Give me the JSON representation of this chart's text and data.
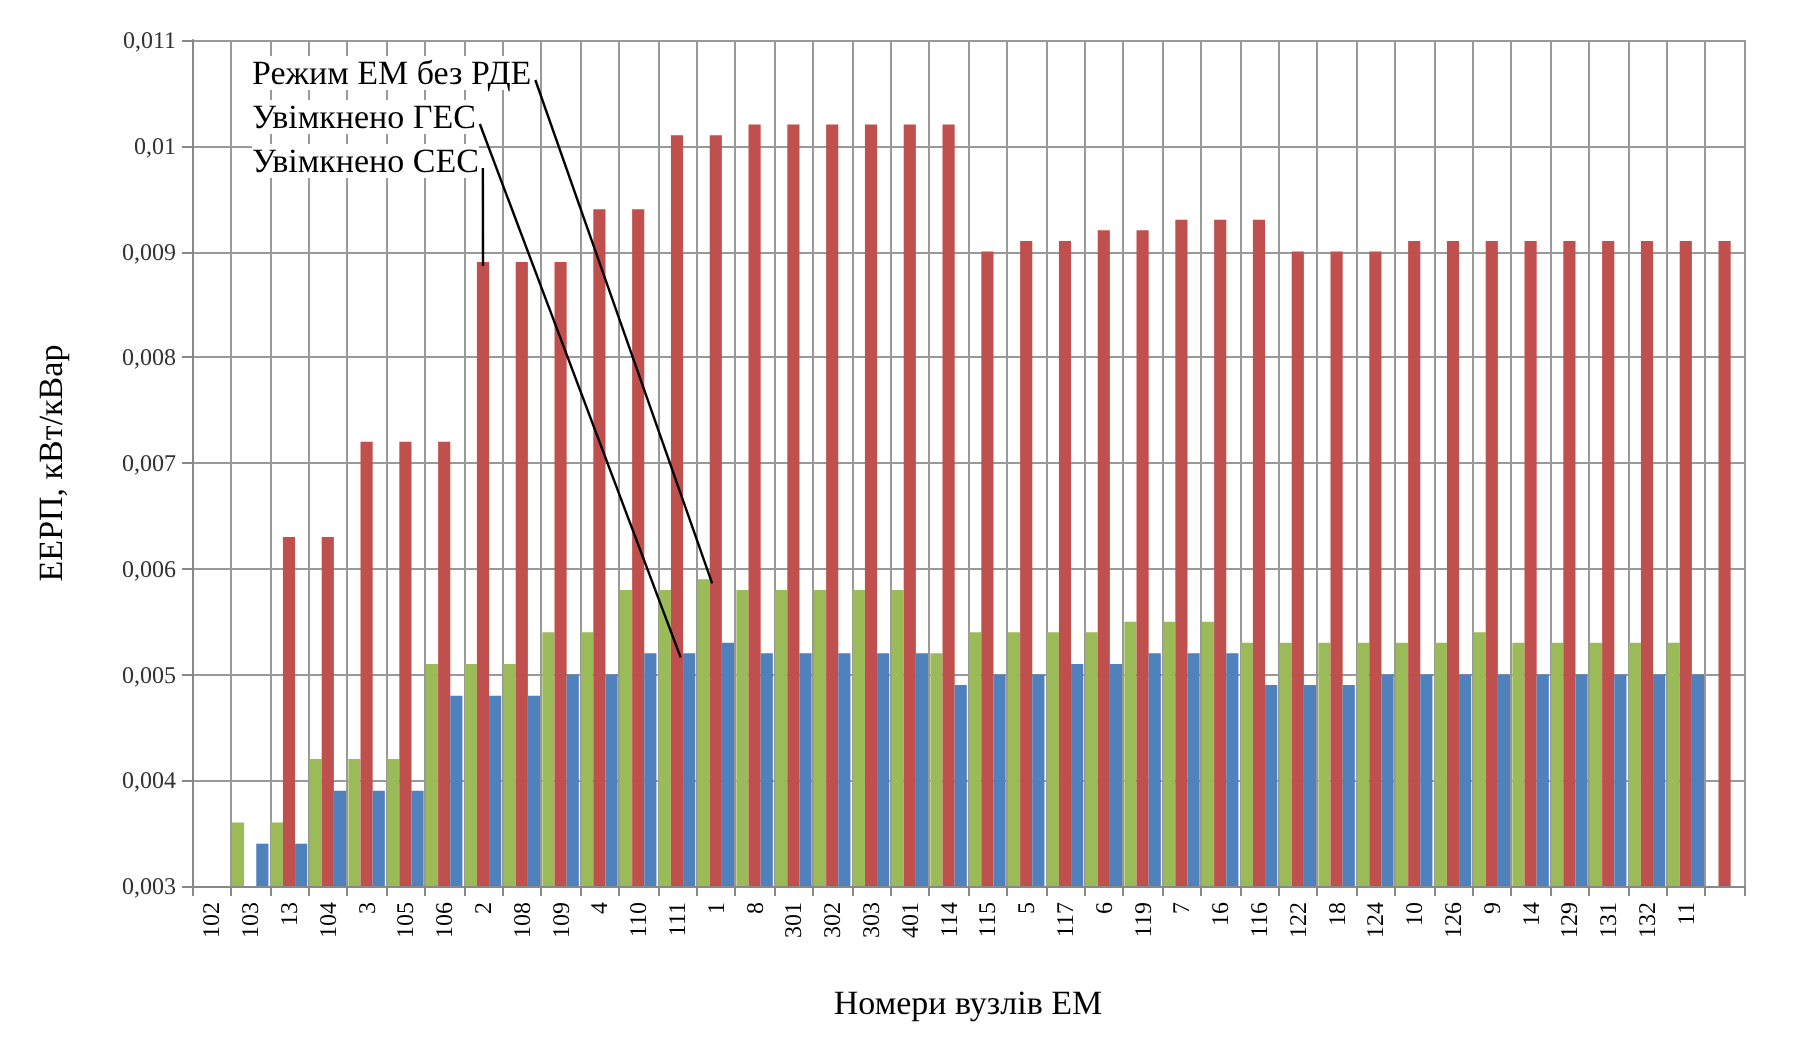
{
  "chart_data": {
    "type": "bar",
    "xlabel": "Номери вузлів ЕМ",
    "ylabel": "ЕЕРП, кВт/кВар",
    "categories": [
      "102",
      "103",
      "13",
      "104",
      "3",
      "105",
      "106",
      "2",
      "108",
      "109",
      "4",
      "110",
      "111",
      "1",
      "8",
      "301",
      "302",
      "303",
      "401",
      "114",
      "115",
      "5",
      "117",
      "6",
      "119",
      "7",
      "16",
      "116",
      "122",
      "18",
      "124",
      "10",
      "126",
      "9",
      "14",
      "129",
      "131",
      "132",
      "11",
      null
    ],
    "series": [
      {
        "color": "#9bbb59",
        "values": [
          null,
          0.0036,
          0.0036,
          0.0042,
          0.0042,
          0.0042,
          0.0051,
          0.0051,
          0.0051,
          0.0054,
          0.0054,
          0.0058,
          0.0058,
          0.0059,
          0.0058,
          0.0058,
          0.0058,
          0.0058,
          0.0058,
          0.0052,
          0.0054,
          0.0054,
          0.0054,
          0.0054,
          0.0055,
          0.0055,
          0.0055,
          0.0053,
          0.0053,
          0.0053,
          0.0053,
          0.0053,
          0.0053,
          0.0054,
          0.0053,
          0.0053,
          0.0053,
          0.0053,
          0.0053,
          null
        ]
      },
      {
        "color": "#c0504d",
        "values": [
          null,
          null,
          0.0063,
          0.0063,
          0.0072,
          0.0072,
          0.0072,
          0.0089,
          0.0089,
          0.0089,
          0.0094,
          0.0094,
          0.0101,
          0.0101,
          0.0102,
          0.0102,
          0.0102,
          0.0102,
          0.0102,
          0.0102,
          0.009,
          0.0091,
          0.0091,
          0.0092,
          0.0092,
          0.0093,
          0.0093,
          0.0093,
          0.009,
          0.009,
          0.009,
          0.0091,
          0.0091,
          0.0091,
          0.0091,
          0.0091,
          0.0091,
          0.0091,
          0.0091,
          0.0091
        ]
      },
      {
        "color": "#4f81bd",
        "values": [
          null,
          0.0034,
          0.0034,
          0.0039,
          0.0039,
          0.0039,
          0.0048,
          0.0048,
          0.0048,
          0.005,
          0.005,
          0.0052,
          0.0052,
          0.0053,
          0.0052,
          0.0052,
          0.0052,
          0.0052,
          0.0052,
          0.0049,
          0.005,
          0.005,
          0.0051,
          0.0051,
          0.0052,
          0.0052,
          0.0052,
          0.0049,
          0.0049,
          0.0049,
          0.005,
          0.005,
          0.005,
          0.005,
          0.005,
          0.005,
          0.005,
          0.005,
          0.005,
          null
        ]
      }
    ],
    "ylim": [
      0.003,
      0.011
    ],
    "yticks": [
      {
        "value": 0.003,
        "label": "0,003"
      },
      {
        "value": 0.004,
        "label": "0,004"
      },
      {
        "value": 0.005,
        "label": "0,005"
      },
      {
        "value": 0.006,
        "label": "0,006"
      },
      {
        "value": 0.007,
        "label": "0,007"
      },
      {
        "value": 0.008,
        "label": "0,008"
      },
      {
        "value": 0.009,
        "label": "0,009"
      },
      {
        "value": 0.01,
        "label": "0,01"
      },
      {
        "value": 0.011,
        "label": "0,011"
      }
    ],
    "grid": true,
    "annotations": [
      {
        "text": "Режим ЕМ без РДЕ",
        "x": "1",
        "y": 0.0059
      },
      {
        "text": "Увімкнено ГЕС",
        "x": "111",
        "y": 0.0052
      },
      {
        "text": "Увімкнено СЕС",
        "x": "2",
        "y": 0.0089
      }
    ]
  }
}
